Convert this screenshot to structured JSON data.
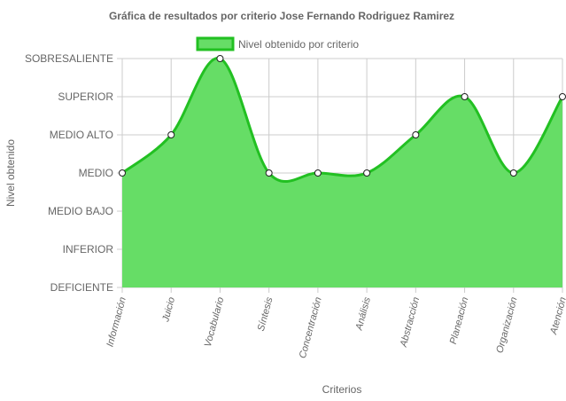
{
  "chart_data": {
    "type": "area",
    "title": "Gráfica de resultados por criterio Jose Fernando Rodriguez Ramirez",
    "xlabel": "Criterios",
    "ylabel": "Nivel obtenido",
    "levels": [
      "DEFICIENTE",
      "INFERIOR",
      "MEDIO BAJO",
      "MEDIO",
      "MEDIO ALTO",
      "SUPERIOR",
      "SOBRESALIENTE"
    ],
    "categories": [
      "Información",
      "Juicio",
      "Vocabulario",
      "Síntesis",
      "Concentración",
      "Análisis",
      "Abstracción",
      "Planeación",
      "Organización",
      "Atención"
    ],
    "series": [
      {
        "name": "Nivel obtenido por criterio",
        "values": [
          3,
          4,
          6,
          3,
          3,
          3,
          4,
          5,
          3,
          5
        ]
      }
    ],
    "ylim": [
      0,
      6
    ],
    "grid": true,
    "legend_position": "top-center",
    "colors": {
      "fill": "#66dd66",
      "line": "#22c022",
      "point_fill": "#ffffff",
      "point_stroke": "#222222",
      "grid": "#cccccc"
    }
  }
}
